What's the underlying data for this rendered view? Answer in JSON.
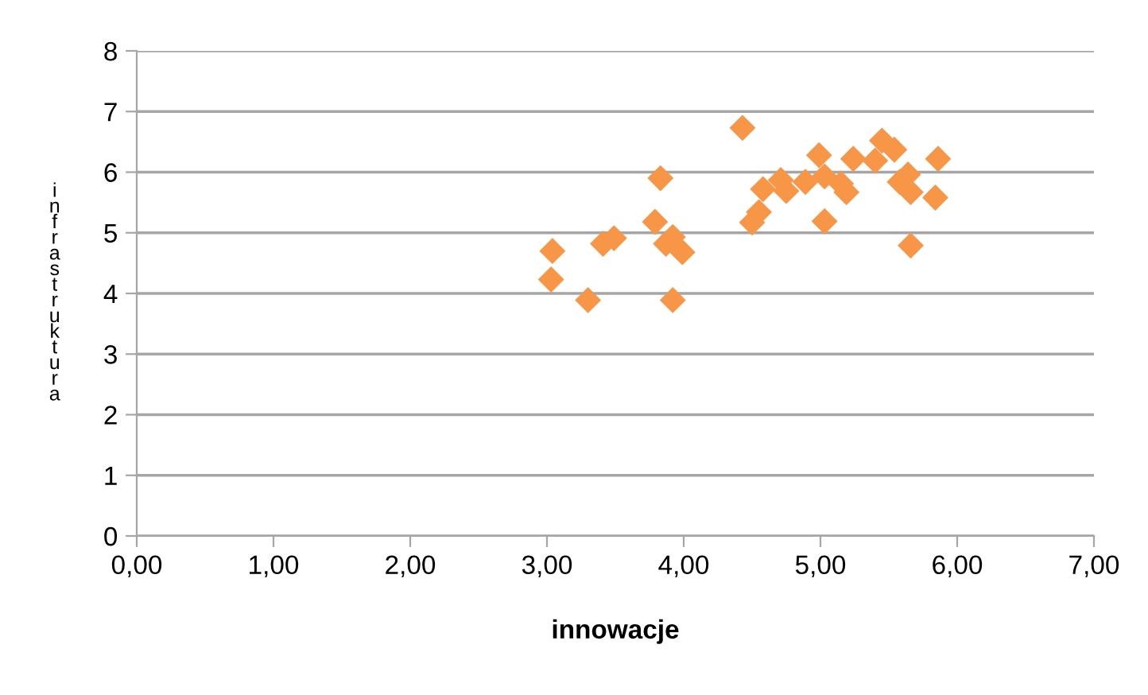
{
  "chart_data": {
    "type": "scatter",
    "xlabel": "innowacje",
    "ylabel": "infrastruktura",
    "x": [
      3.04,
      3.03,
      3.3,
      3.41,
      3.49,
      3.79,
      3.83,
      3.87,
      3.92,
      3.99,
      3.92,
      4.43,
      4.5,
      4.55,
      4.58,
      4.71,
      4.75,
      4.89,
      4.99,
      5.03,
      5.15,
      5.19,
      5.03,
      5.24,
      5.4,
      5.45,
      5.54,
      5.86,
      5.58,
      5.64,
      5.66,
      5.84,
      5.66
    ],
    "values": [
      4.7,
      4.23,
      3.89,
      4.82,
      4.91,
      5.18,
      5.9,
      4.82,
      4.93,
      4.68,
      3.89,
      6.73,
      5.17,
      5.34,
      5.72,
      5.87,
      5.69,
      5.84,
      6.28,
      5.93,
      5.81,
      5.67,
      5.19,
      6.22,
      6.19,
      6.52,
      6.37,
      6.22,
      5.84,
      5.96,
      5.67,
      5.58,
      4.79
    ],
    "color": "#f79646",
    "marker": "diamond",
    "grid": "y",
    "legend": false,
    "xlim": [
      0,
      7
    ],
    "xticks": [
      {
        "value": 0,
        "label": "0,00"
      },
      {
        "value": 1,
        "label": "1,00"
      },
      {
        "value": 2,
        "label": "2,00"
      },
      {
        "value": 3,
        "label": "3,00"
      },
      {
        "value": 4,
        "label": "4,00"
      },
      {
        "value": 5,
        "label": "5,00"
      },
      {
        "value": 6,
        "label": "6,00"
      },
      {
        "value": 7,
        "label": "7,00"
      }
    ],
    "ylim": [
      0,
      8
    ],
    "yticks": [
      0,
      1,
      2,
      3,
      4,
      5,
      6,
      7,
      8
    ]
  }
}
